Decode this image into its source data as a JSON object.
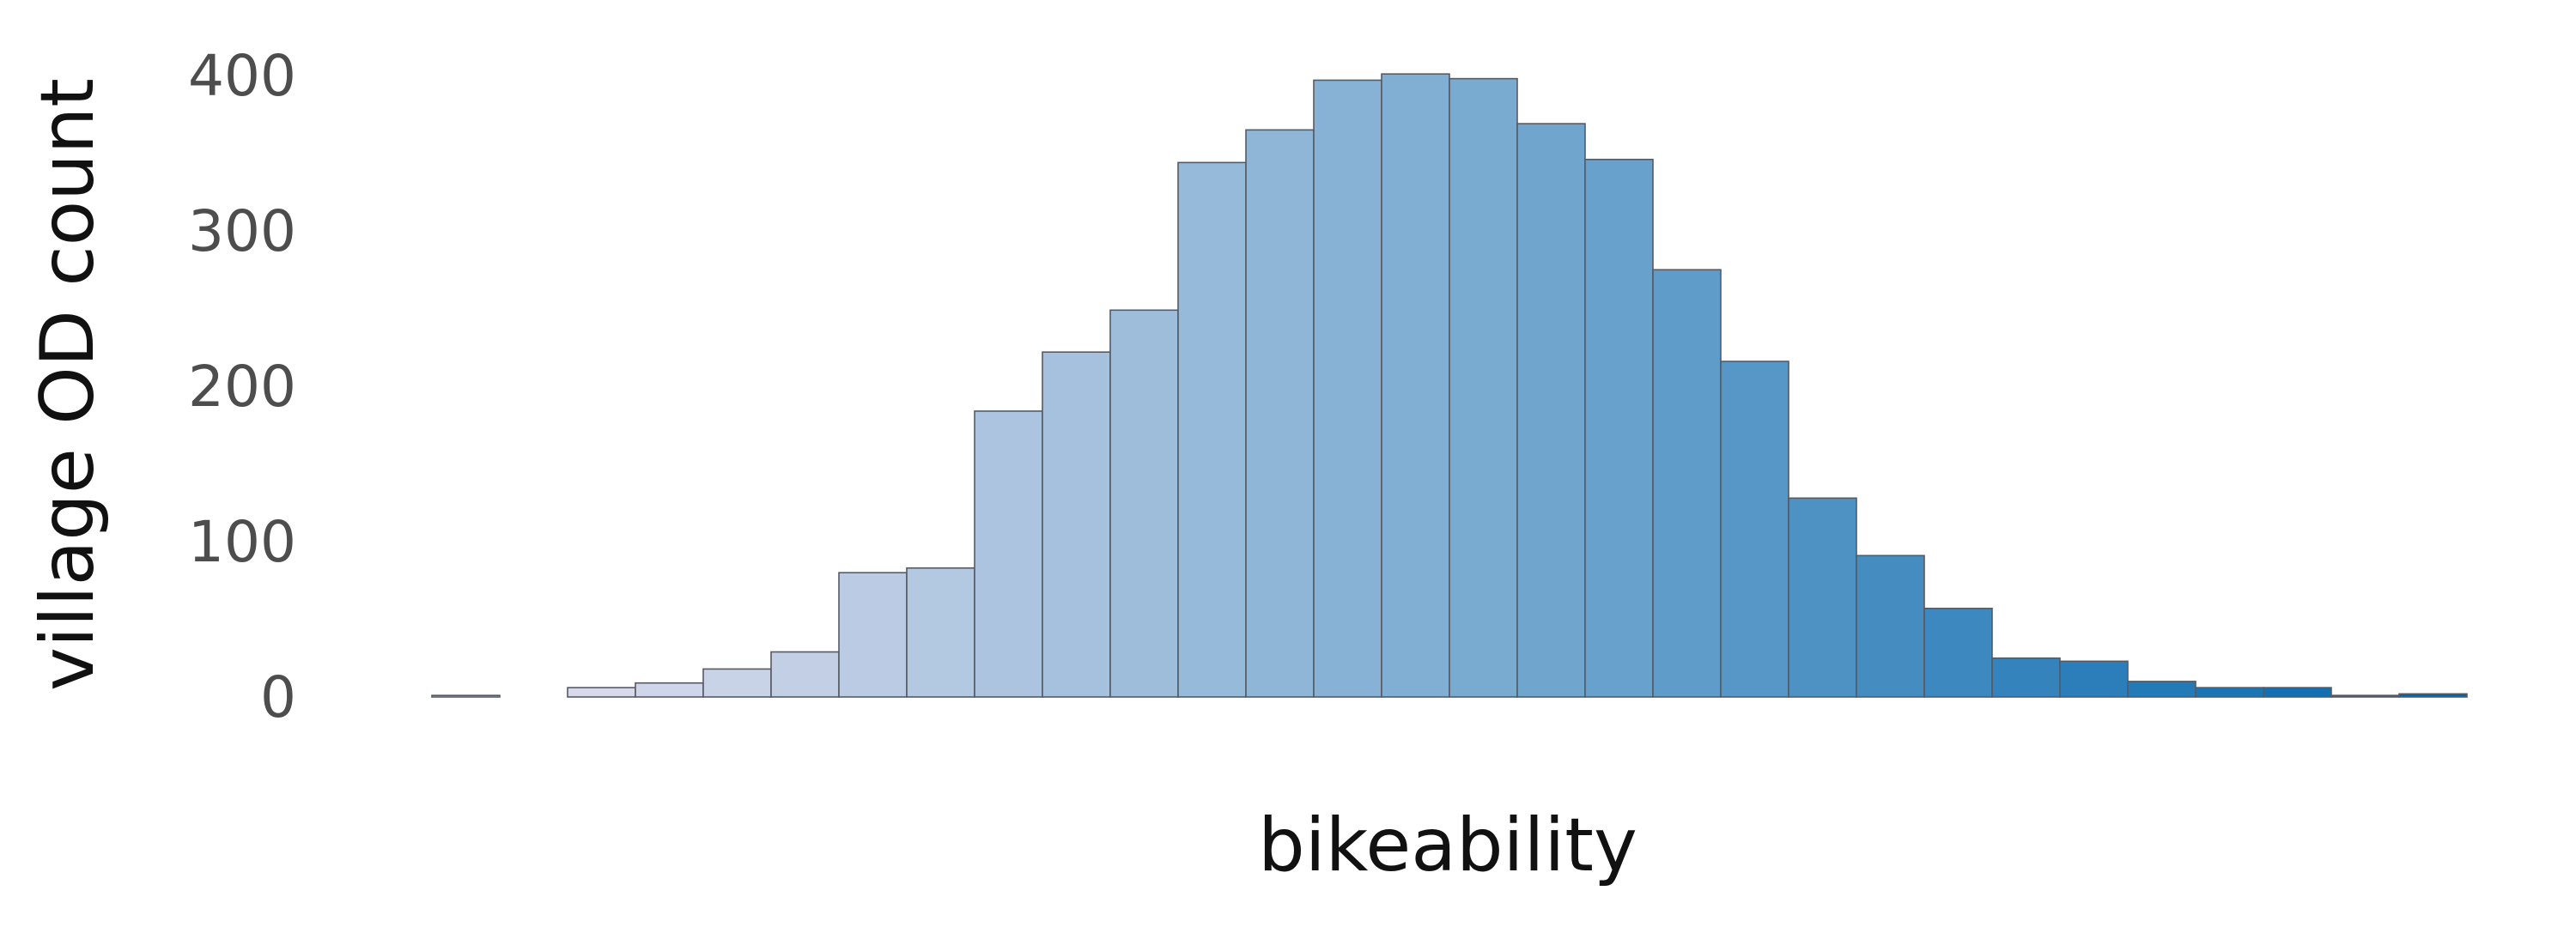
{
  "chart_data": {
    "type": "bar",
    "subtype": "histogram",
    "title": "",
    "xlabel": "bikeability",
    "ylabel": "village OD count",
    "ylim": [
      0,
      400
    ],
    "yticks": [
      0,
      100,
      200,
      300,
      400
    ],
    "ytick_labels": [
      "0",
      "100",
      "200",
      "300",
      "400"
    ],
    "xticks_shown": false,
    "grid": false,
    "legend": "none",
    "bin_count": 30,
    "values": [
      1,
      0,
      6,
      9,
      18,
      29,
      80,
      83,
      184,
      222,
      249,
      344,
      365,
      397,
      401,
      398,
      369,
      346,
      275,
      216,
      128,
      91,
      57,
      25,
      23,
      10,
      6,
      6,
      1,
      2
    ],
    "color_start": "#e6e1ef",
    "color_mid": "#7dadd2",
    "color_end": "#0066ad",
    "bar_edge_color": "#555a63"
  }
}
